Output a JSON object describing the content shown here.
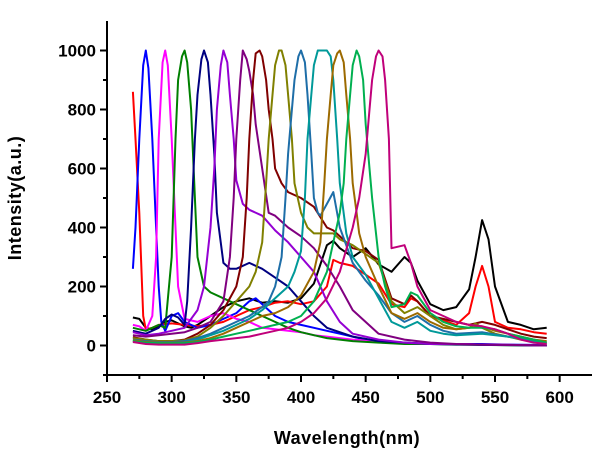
{
  "chart_data": {
    "type": "line",
    "title": "",
    "xlabel": "Wavelength(nm)",
    "ylabel": "Intensity(a.u.)",
    "xlim": [
      250,
      625
    ],
    "ylim": [
      -100,
      1100
    ],
    "xticks": [
      250,
      300,
      350,
      400,
      450,
      500,
      550,
      600
    ],
    "yticks": [
      0,
      200,
      400,
      600,
      800,
      1000
    ],
    "grid": false,
    "legend": "none",
    "series": [
      {
        "name": "black",
        "color": "#000000",
        "x": [
          270,
          275,
          280,
          285,
          290,
          295,
          300,
          305,
          310,
          315,
          320,
          330,
          340,
          350,
          360,
          370,
          380,
          390,
          400,
          410,
          420,
          425,
          430,
          440,
          450,
          460,
          470,
          480,
          485,
          490,
          500,
          510,
          520,
          530,
          535,
          540,
          545,
          550,
          560,
          570,
          580,
          590
        ],
        "y": [
          95,
          90,
          60,
          55,
          65,
          80,
          85,
          75,
          65,
          60,
          70,
          100,
          130,
          150,
          160,
          145,
          150,
          145,
          160,
          210,
          340,
          355,
          330,
          300,
          330,
          275,
          250,
          300,
          280,
          220,
          140,
          120,
          130,
          190,
          300,
          425,
          360,
          200,
          80,
          70,
          55,
          60
        ]
      },
      {
        "name": "red",
        "color": "#ff0000",
        "x": [
          270,
          272,
          275,
          278,
          280,
          285,
          290,
          300,
          310,
          320,
          330,
          340,
          350,
          360,
          370,
          380,
          390,
          400,
          410,
          420,
          425,
          430,
          440,
          450,
          460,
          470,
          480,
          485,
          490,
          500,
          510,
          520,
          530,
          535,
          540,
          545,
          550,
          560,
          570,
          580,
          590
        ],
        "y": [
          860,
          700,
          450,
          100,
          55,
          60,
          70,
          75,
          70,
          65,
          70,
          80,
          100,
          120,
          130,
          145,
          150,
          140,
          150,
          200,
          290,
          280,
          270,
          240,
          210,
          140,
          130,
          160,
          150,
          100,
          85,
          70,
          110,
          200,
          270,
          200,
          80,
          60,
          55,
          45,
          40
        ]
      },
      {
        "name": "blue",
        "color": "#0000ff",
        "x": [
          270,
          272,
          275,
          278,
          280,
          282,
          285,
          288,
          290,
          292,
          295,
          300,
          305,
          310,
          320,
          330,
          340,
          350,
          360,
          365,
          370,
          380,
          390,
          400,
          410,
          420,
          430,
          440,
          450,
          460,
          480,
          500,
          520,
          540,
          560,
          580,
          590
        ],
        "y": [
          260,
          400,
          700,
          950,
          1000,
          940,
          700,
          400,
          200,
          80,
          50,
          100,
          110,
          80,
          60,
          70,
          90,
          110,
          150,
          160,
          140,
          100,
          80,
          70,
          60,
          50,
          40,
          30,
          20,
          15,
          10,
          5,
          5,
          5,
          3,
          2,
          0
        ]
      },
      {
        "name": "magenta",
        "color": "#ff00ff",
        "x": [
          270,
          275,
          280,
          285,
          288,
          290,
          293,
          295,
          297,
          300,
          303,
          305,
          310,
          320,
          330,
          340,
          350,
          360,
          370,
          380,
          390,
          400,
          410,
          420,
          440,
          460,
          480,
          500,
          520,
          540,
          560,
          580,
          590
        ],
        "y": [
          70,
          65,
          50,
          100,
          300,
          700,
          960,
          1000,
          950,
          700,
          400,
          200,
          90,
          80,
          100,
          110,
          90,
          80,
          60,
          55,
          50,
          45,
          35,
          30,
          20,
          15,
          10,
          5,
          5,
          3,
          2,
          1,
          0
        ]
      },
      {
        "name": "green",
        "color": "#008000",
        "x": [
          270,
          275,
          280,
          285,
          290,
          295,
          300,
          303,
          305,
          308,
          310,
          312,
          315,
          318,
          320,
          325,
          330,
          340,
          350,
          360,
          370,
          380,
          390,
          400,
          410,
          420,
          440,
          460,
          480,
          500,
          520,
          540,
          560,
          580,
          590
        ],
        "y": [
          60,
          55,
          50,
          60,
          70,
          60,
          300,
          700,
          900,
          980,
          1000,
          960,
          800,
          500,
          300,
          200,
          180,
          160,
          140,
          120,
          100,
          80,
          60,
          45,
          35,
          25,
          15,
          10,
          5,
          5,
          3,
          2,
          1,
          0,
          0
        ]
      },
      {
        "name": "navy",
        "color": "#000080",
        "x": [
          270,
          280,
          290,
          295,
          300,
          305,
          310,
          312,
          315,
          318,
          320,
          323,
          325,
          328,
          330,
          333,
          335,
          340,
          345,
          350,
          360,
          370,
          380,
          390,
          400,
          410,
          420,
          440,
          460,
          480,
          500,
          540,
          590
        ],
        "y": [
          50,
          40,
          60,
          90,
          105,
          95,
          70,
          150,
          400,
          700,
          850,
          970,
          1000,
          960,
          850,
          650,
          450,
          280,
          260,
          260,
          280,
          260,
          230,
          200,
          150,
          100,
          60,
          30,
          15,
          10,
          5,
          2,
          0
        ]
      },
      {
        "name": "violet",
        "color": "#9400d3",
        "x": [
          270,
          280,
          290,
          300,
          310,
          320,
          325,
          330,
          333,
          335,
          338,
          340,
          343,
          345,
          348,
          350,
          355,
          360,
          370,
          380,
          390,
          400,
          410,
          420,
          430,
          440,
          460,
          480,
          500,
          520,
          540,
          560,
          580,
          590
        ],
        "y": [
          45,
          35,
          40,
          50,
          60,
          120,
          200,
          400,
          600,
          800,
          950,
          1000,
          960,
          850,
          700,
          560,
          480,
          460,
          440,
          390,
          350,
          300,
          250,
          150,
          80,
          40,
          20,
          10,
          5,
          5,
          3,
          2,
          1,
          0
        ]
      },
      {
        "name": "purple",
        "color": "#800080",
        "x": [
          270,
          280,
          290,
          300,
          310,
          320,
          330,
          340,
          345,
          348,
          350,
          353,
          355,
          358,
          360,
          363,
          365,
          370,
          375,
          380,
          385,
          390,
          400,
          410,
          420,
          430,
          440,
          460,
          480,
          500,
          520,
          540,
          560,
          580,
          590
        ],
        "y": [
          35,
          30,
          35,
          40,
          45,
          60,
          80,
          150,
          300,
          500,
          700,
          900,
          1000,
          970,
          930,
          850,
          750,
          600,
          450,
          440,
          420,
          400,
          370,
          330,
          270,
          200,
          120,
          40,
          20,
          10,
          5,
          3,
          2,
          1,
          0
        ]
      },
      {
        "name": "maroon",
        "color": "#800000",
        "x": [
          270,
          280,
          290,
          300,
          310,
          320,
          330,
          340,
          350,
          355,
          358,
          360,
          363,
          365,
          368,
          370,
          373,
          375,
          378,
          380,
          385,
          390,
          400,
          410,
          420,
          425,
          430,
          440,
          450,
          460,
          470,
          480,
          485,
          490,
          500,
          510,
          520,
          530,
          540,
          550,
          560,
          570,
          580,
          590
        ],
        "y": [
          28,
          20,
          15,
          15,
          20,
          40,
          70,
          120,
          200,
          300,
          500,
          700,
          900,
          990,
          1000,
          980,
          900,
          800,
          700,
          600,
          550,
          520,
          500,
          470,
          400,
          390,
          370,
          330,
          320,
          290,
          160,
          140,
          170,
          150,
          100,
          90,
          80,
          70,
          80,
          70,
          55,
          40,
          30,
          25
        ]
      },
      {
        "name": "olive",
        "color": "#808000",
        "x": [
          270,
          280,
          290,
          300,
          310,
          320,
          330,
          340,
          350,
          360,
          365,
          370,
          373,
          375,
          378,
          380,
          383,
          385,
          388,
          390,
          393,
          395,
          400,
          405,
          410,
          420,
          425,
          430,
          440,
          450,
          460,
          470,
          480,
          490,
          500,
          510,
          520,
          530,
          535,
          540,
          550,
          560,
          570,
          580,
          590
        ],
        "y": [
          25,
          20,
          15,
          15,
          18,
          30,
          60,
          100,
          150,
          200,
          250,
          350,
          550,
          700,
          850,
          950,
          1000,
          1000,
          950,
          850,
          700,
          550,
          450,
          400,
          380,
          380,
          380,
          360,
          340,
          310,
          280,
          150,
          110,
          130,
          100,
          70,
          55,
          60,
          75,
          60,
          40,
          30,
          20,
          15,
          10
        ]
      },
      {
        "name": "steelblue",
        "color": "#1e6ea8",
        "x": [
          270,
          280,
          290,
          300,
          310,
          320,
          330,
          340,
          350,
          360,
          370,
          375,
          380,
          385,
          388,
          390,
          393,
          395,
          398,
          400,
          403,
          405,
          408,
          410,
          413,
          415,
          420,
          425,
          430,
          440,
          450,
          460,
          470,
          480,
          490,
          500,
          510,
          520,
          540,
          560,
          580,
          590
        ],
        "y": [
          20,
          15,
          12,
          12,
          15,
          25,
          40,
          60,
          80,
          100,
          130,
          150,
          200,
          300,
          500,
          650,
          800,
          900,
          980,
          1000,
          960,
          850,
          650,
          500,
          450,
          440,
          480,
          520,
          400,
          280,
          220,
          170,
          110,
          80,
          100,
          70,
          50,
          40,
          45,
          30,
          20,
          10
        ]
      },
      {
        "name": "teal",
        "color": "#009999",
        "x": [
          270,
          280,
          290,
          300,
          310,
          320,
          330,
          340,
          350,
          360,
          370,
          380,
          390,
          395,
          400,
          403,
          405,
          408,
          410,
          413,
          415,
          420,
          423,
          425,
          428,
          430,
          435,
          440,
          450,
          460,
          470,
          480,
          490,
          500,
          510,
          520,
          540,
          560,
          580,
          590
        ],
        "y": [
          15,
          10,
          8,
          8,
          10,
          20,
          35,
          50,
          70,
          90,
          120,
          160,
          200,
          250,
          320,
          500,
          700,
          850,
          950,
          1000,
          1000,
          1000,
          980,
          900,
          700,
          550,
          380,
          300,
          240,
          160,
          80,
          60,
          80,
          50,
          40,
          35,
          40,
          30,
          15,
          5
        ]
      },
      {
        "name": "goldenbrown",
        "color": "#9c6a00",
        "x": [
          270,
          280,
          290,
          300,
          310,
          320,
          330,
          340,
          350,
          360,
          370,
          380,
          390,
          400,
          410,
          415,
          418,
          420,
          423,
          425,
          428,
          430,
          433,
          435,
          438,
          440,
          443,
          445,
          450,
          460,
          470,
          480,
          490,
          500,
          510,
          520,
          530,
          540,
          550,
          560,
          570,
          580,
          590
        ],
        "y": [
          18,
          12,
          10,
          10,
          10,
          15,
          25,
          40,
          60,
          80,
          100,
          110,
          130,
          170,
          250,
          350,
          550,
          700,
          850,
          950,
          990,
          1000,
          960,
          850,
          700,
          550,
          450,
          380,
          300,
          200,
          110,
          90,
          110,
          80,
          60,
          55,
          60,
          65,
          50,
          40,
          30,
          20,
          15
        ]
      },
      {
        "name": "springgreen",
        "color": "#00b050",
        "x": [
          270,
          280,
          290,
          300,
          310,
          320,
          330,
          340,
          350,
          360,
          370,
          380,
          390,
          400,
          410,
          420,
          425,
          430,
          433,
          435,
          438,
          440,
          443,
          445,
          448,
          450,
          453,
          455,
          460,
          465,
          470,
          480,
          485,
          490,
          500,
          510,
          520,
          530,
          540,
          550,
          560,
          580,
          590
        ],
        "y": [
          15,
          10,
          8,
          8,
          8,
          12,
          20,
          30,
          40,
          50,
          60,
          70,
          80,
          100,
          150,
          250,
          350,
          450,
          550,
          700,
          850,
          950,
          1000,
          980,
          900,
          750,
          600,
          500,
          300,
          200,
          130,
          140,
          180,
          170,
          110,
          80,
          65,
          60,
          60,
          55,
          40,
          20,
          10
        ]
      },
      {
        "name": "mediumvioletred",
        "color": "#c0007a",
        "x": [
          270,
          280,
          290,
          300,
          310,
          320,
          330,
          340,
          350,
          360,
          370,
          380,
          390,
          400,
          410,
          420,
          430,
          440,
          445,
          450,
          453,
          455,
          458,
          460,
          463,
          465,
          468,
          470,
          480,
          485,
          490,
          500,
          510,
          520,
          530,
          540,
          550,
          560,
          570,
          580,
          590
        ],
        "y": [
          12,
          5,
          3,
          3,
          3,
          8,
          15,
          20,
          25,
          30,
          40,
          50,
          60,
          80,
          110,
          160,
          250,
          400,
          500,
          650,
          800,
          900,
          980,
          1000,
          980,
          900,
          700,
          330,
          340,
          280,
          200,
          120,
          100,
          80,
          70,
          65,
          55,
          40,
          20,
          10,
          5
        ]
      }
    ]
  }
}
